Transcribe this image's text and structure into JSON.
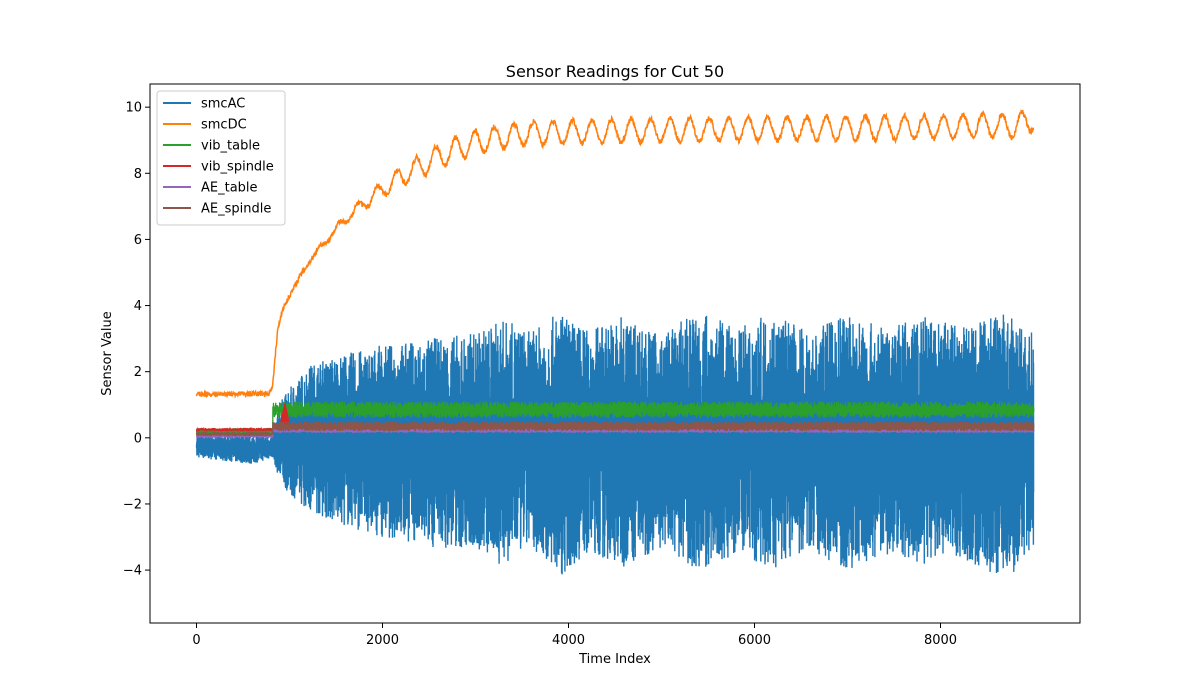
{
  "chart_data": {
    "type": "line",
    "title": "Sensor Readings for Cut 50",
    "xlabel": "Time Index",
    "ylabel": "Sensor Value",
    "xlim": [
      -500,
      9500
    ],
    "ylim": [
      -5.6,
      10.7
    ],
    "xticks": [
      0,
      2000,
      4000,
      6000,
      8000
    ],
    "yticks": [
      -4,
      -2,
      0,
      2,
      4,
      6,
      8,
      10
    ],
    "xtick_labels": [
      "0",
      "2000",
      "4000",
      "6000",
      "8000"
    ],
    "ytick_labels": [
      "−4",
      "−2",
      "0",
      "2",
      "4",
      "6",
      "8",
      "10"
    ],
    "grid": false,
    "legend_position": "top-left",
    "series": [
      {
        "name": "smcAC",
        "color": "#1f77b4",
        "upper_envelope": {
          "x": [
            0,
            300,
            600,
            820,
            900,
            1000,
            1200,
            1500,
            2000,
            2500,
            3000,
            3300,
            3600,
            3900,
            4200,
            4600,
            5000,
            5400,
            5800,
            6200,
            6600,
            7000,
            7400,
            7800,
            8200,
            8600,
            9000
          ],
          "y": [
            0.1,
            0.1,
            0.1,
            0.1,
            1.1,
            1.5,
            2.2,
            2.5,
            2.8,
            3.0,
            3.2,
            3.6,
            3.2,
            3.8,
            3.3,
            3.7,
            3.1,
            3.9,
            3.3,
            3.8,
            3.2,
            3.8,
            3.3,
            3.7,
            3.4,
            3.9,
            3.2
          ]
        },
        "lower_envelope": {
          "x": [
            0,
            300,
            600,
            820,
            900,
            1000,
            1200,
            1500,
            2000,
            2500,
            3000,
            3300,
            3600,
            3900,
            4200,
            4600,
            5000,
            5400,
            5800,
            6200,
            6600,
            7000,
            7400,
            7800,
            8200,
            8600,
            9000
          ],
          "y": [
            -0.6,
            -0.7,
            -0.8,
            -0.6,
            -1.4,
            -1.7,
            -2.2,
            -2.6,
            -3.0,
            -3.3,
            -3.4,
            -3.9,
            -3.3,
            -4.2,
            -3.5,
            -3.9,
            -3.3,
            -4.1,
            -3.5,
            -4.0,
            -3.4,
            -4.0,
            -3.5,
            -3.9,
            -3.6,
            -4.2,
            -3.9
          ]
        }
      },
      {
        "name": "smcDC",
        "color": "#ff7f0e",
        "x": [
          0,
          200,
          400,
          600,
          780,
          820,
          870,
          920,
          1000,
          1100,
          1200,
          1400,
          1600,
          1800,
          2000,
          2200,
          2400,
          2600,
          2800,
          3000,
          3200,
          3500,
          4000,
          4500,
          5000,
          5500,
          6000,
          6500,
          7000,
          7500,
          8000,
          8500,
          9000
        ],
        "y": [
          1.32,
          1.32,
          1.33,
          1.33,
          1.34,
          1.6,
          3.2,
          3.85,
          4.3,
          4.8,
          5.3,
          6.0,
          6.6,
          7.1,
          7.5,
          7.9,
          8.2,
          8.5,
          8.75,
          8.95,
          9.05,
          9.2,
          9.25,
          9.28,
          9.3,
          9.32,
          9.33,
          9.35,
          9.36,
          9.38,
          9.4,
          9.45,
          9.4
        ],
        "oscillation_amplitude": 0.35,
        "oscillation_period": 210,
        "noise": 0.08,
        "final_value": 9.65
      },
      {
        "name": "vib_table",
        "color": "#2ca02c",
        "base": [
          0.2,
          0.8
        ],
        "range": [
          0.1,
          0.3,
          0.6,
          1.1
        ],
        "noise": 0.15
      },
      {
        "name": "vib_spindle",
        "color": "#d62728",
        "base": [
          0.3,
          0.3
        ],
        "range": [
          0.2,
          0.3,
          0.2,
          0.3
        ],
        "spike": {
          "x": 950,
          "y": 1.05
        },
        "noise": 0.03
      },
      {
        "name": "AE_table",
        "color": "#9467bd",
        "base": [
          0.05,
          0.22
        ],
        "range": [
          0.02,
          0.08,
          0.15,
          0.28
        ],
        "noise": 0.03
      },
      {
        "name": "AE_spindle",
        "color": "#8c564b",
        "base": [
          0.12,
          0.35
        ],
        "range": [
          0.05,
          0.18,
          0.2,
          0.5
        ],
        "noise": 0.06
      }
    ]
  }
}
